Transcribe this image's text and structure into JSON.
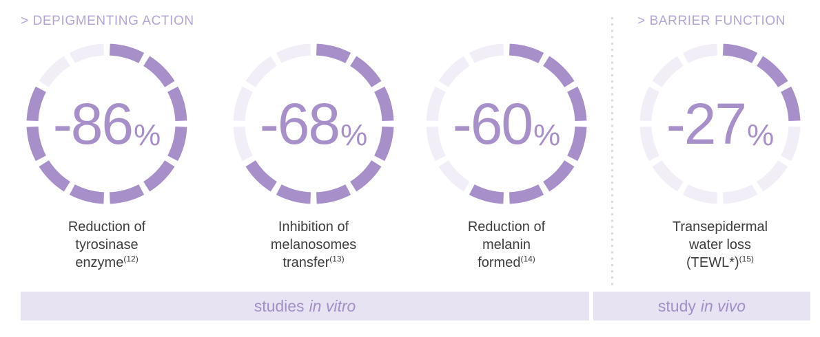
{
  "theme": {
    "background": "#ffffff",
    "ring_filled": "#a78fc9",
    "ring_empty": "#f1eef7",
    "value_color": "#a78fc9",
    "header_color": "#b5a5d5",
    "caption_color": "#3d3d3d",
    "bar_background": "#e8e3f2",
    "bar_text_color": "#a18fc6",
    "divider_dot_color": "#dcd8ec"
  },
  "sections": [
    {
      "header": "> DEPIGMENTING ACTION",
      "footer_prefix": "studies",
      "footer_italic": "in vitro",
      "gauges": [
        {
          "percent": 86,
          "value_label": "-86",
          "percent_sign": "%",
          "caption_line1": "Reduction of",
          "caption_line2": "tyrosinase",
          "caption_line3": "enzyme",
          "footnote": "(12)"
        },
        {
          "percent": 68,
          "value_label": "-68",
          "percent_sign": "%",
          "caption_line1": "Inhibition of",
          "caption_line2": "melanosomes",
          "caption_line3": "transfer",
          "footnote": "(13)"
        },
        {
          "percent": 60,
          "value_label": "-60",
          "percent_sign": "%",
          "caption_line1": "Reduction of",
          "caption_line2": "melanin",
          "caption_line3": "formed",
          "footnote": "(14)"
        }
      ]
    },
    {
      "header": "> BARRIER FUNCTION",
      "footer_prefix": "study",
      "footer_italic": "in vivo",
      "gauges": [
        {
          "percent": 27,
          "value_label": "-27",
          "percent_sign": "%",
          "caption_line1": "Transepidermal",
          "caption_line2": "water loss",
          "caption_line3": "(TEWL*)",
          "footnote": "(15)"
        }
      ]
    }
  ],
  "chart_data": {
    "type": "pie",
    "subtype": "segmented-donut-gauges",
    "segments_per_ring": 12,
    "gauges": [
      {
        "group": "DEPIGMENTING ACTION",
        "label": "Reduction of tyrosinase enzyme",
        "reference": "(12)",
        "value_percent": -86,
        "filled_fraction": 0.86,
        "filled_segments": 10,
        "study": "in vitro"
      },
      {
        "group": "DEPIGMENTING ACTION",
        "label": "Inhibition of melanosomes transfer",
        "reference": "(13)",
        "value_percent": -68,
        "filled_fraction": 0.68,
        "filled_segments": 8,
        "study": "in vitro"
      },
      {
        "group": "DEPIGMENTING ACTION",
        "label": "Reduction of melanin formed",
        "reference": "(14)",
        "value_percent": -60,
        "filled_fraction": 0.6,
        "filled_segments": 7,
        "study": "in vitro"
      },
      {
        "group": "BARRIER FUNCTION",
        "label": "Transepidermal water loss (TEWL*)",
        "reference": "(15)",
        "value_percent": -27,
        "filled_fraction": 0.27,
        "filled_segments": 3,
        "study": "in vivo"
      }
    ],
    "legend": [
      "studies in vitro",
      "study in vivo"
    ],
    "legend_position": "bottom",
    "grid": false
  }
}
